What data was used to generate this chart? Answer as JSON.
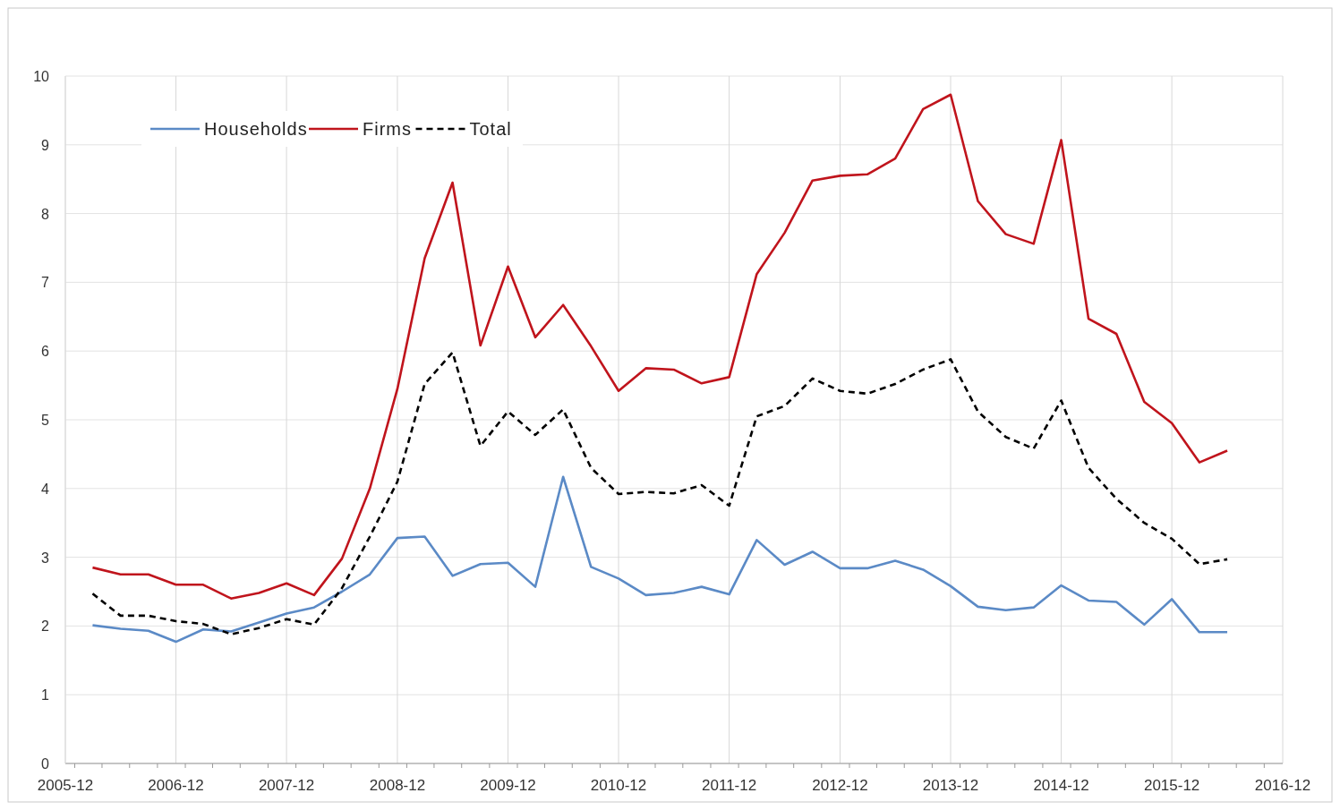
{
  "chart_data": {
    "type": "line",
    "x": [
      "2006-03",
      "2006-06",
      "2006-09",
      "2006-12",
      "2007-03",
      "2007-06",
      "2007-09",
      "2007-12",
      "2008-03",
      "2008-06",
      "2008-09",
      "2008-12",
      "2009-03",
      "2009-06",
      "2009-09",
      "2009-12",
      "2010-03",
      "2010-06",
      "2010-09",
      "2010-12",
      "2011-03",
      "2011-06",
      "2011-09",
      "2011-12",
      "2012-03",
      "2012-06",
      "2012-09",
      "2012-12",
      "2013-03",
      "2013-06",
      "2013-09",
      "2013-12",
      "2014-03",
      "2014-06",
      "2014-09",
      "2014-12",
      "2015-03",
      "2015-06",
      "2015-09",
      "2015-12",
      "2016-03",
      "2016-06"
    ],
    "series": [
      {
        "name": "Households",
        "color": "#5b8ac6",
        "line_style": "solid",
        "values": [
          2.01,
          1.96,
          1.93,
          1.77,
          1.95,
          1.92,
          2.05,
          2.18,
          2.27,
          2.5,
          2.75,
          3.28,
          3.3,
          2.73,
          2.9,
          2.92,
          2.57,
          4.17,
          2.86,
          2.69,
          2.45,
          2.48,
          2.57,
          2.46,
          3.25,
          2.89,
          3.08,
          2.84,
          2.84,
          2.95,
          2.82,
          2.58,
          2.28,
          2.23,
          2.27,
          2.59,
          2.37,
          2.35,
          2.02,
          2.39,
          1.91,
          1.91
        ]
      },
      {
        "name": "Firms",
        "color": "#c0141c",
        "line_style": "solid",
        "values": [
          2.85,
          2.75,
          2.75,
          2.6,
          2.6,
          2.4,
          2.48,
          2.62,
          2.45,
          2.98,
          4.0,
          5.45,
          7.35,
          8.45,
          6.08,
          7.23,
          6.2,
          6.67,
          6.07,
          5.42,
          5.75,
          5.73,
          5.53,
          5.62,
          7.12,
          7.72,
          8.48,
          8.55,
          8.57,
          8.8,
          9.52,
          9.73,
          8.18,
          7.7,
          7.56,
          9.07,
          6.47,
          6.25,
          5.26,
          4.95,
          4.38,
          4.55
        ]
      },
      {
        "name": "Total",
        "color": "#000000",
        "line_style": "dashed",
        "values": [
          2.47,
          2.15,
          2.15,
          2.07,
          2.03,
          1.88,
          1.97,
          2.1,
          2.02,
          2.55,
          3.3,
          4.1,
          5.52,
          5.98,
          4.62,
          5.12,
          4.78,
          5.15,
          4.3,
          3.92,
          3.95,
          3.93,
          4.05,
          3.75,
          5.05,
          5.2,
          5.6,
          5.42,
          5.38,
          5.52,
          5.73,
          5.88,
          5.12,
          4.75,
          4.58,
          5.28,
          4.3,
          3.85,
          3.5,
          3.27,
          2.9,
          2.97
        ]
      }
    ],
    "xlim": [
      "2005-12",
      "2016-12"
    ],
    "xticks": [
      "2005-12",
      "2006-12",
      "2007-12",
      "2008-12",
      "2009-12",
      "2010-12",
      "2011-12",
      "2012-12",
      "2013-12",
      "2014-12",
      "2015-12",
      "2016-12"
    ],
    "ylim": [
      0,
      10
    ],
    "yticks": [
      0,
      1,
      2,
      3,
      4,
      5,
      6,
      7,
      8,
      9,
      10
    ],
    "grid": true,
    "legend": "top left"
  }
}
